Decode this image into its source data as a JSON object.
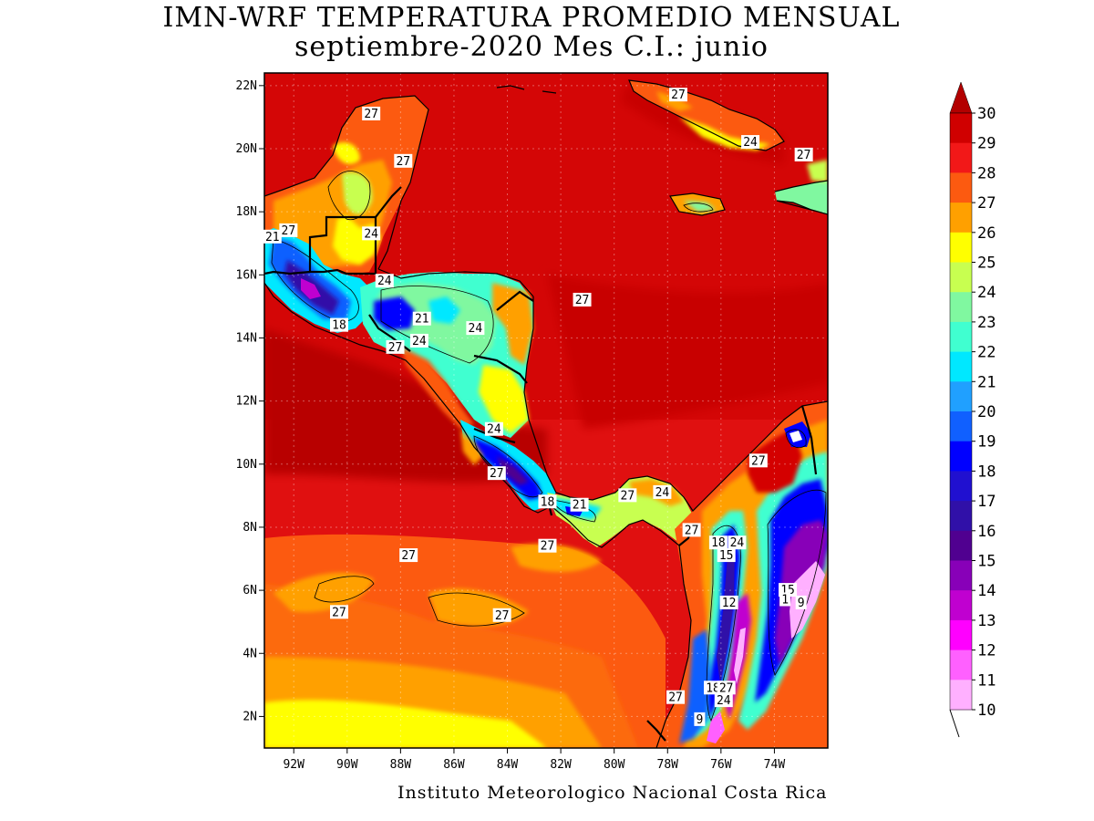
{
  "header": {
    "title_line1": "IMN-WRF  TEMPERATURA PROMEDIO MENSUAL",
    "title_line2": "septiembre-2020 Mes C.I.: junio"
  },
  "footer": {
    "credit": "Instituto Meteorologico Nacional Costa Rica"
  },
  "map": {
    "lon_ticks": [
      "92W",
      "90W",
      "88W",
      "86W",
      "84W",
      "82W",
      "80W",
      "78W",
      "76W",
      "74W"
    ],
    "lat_ticks": [
      "22N",
      "20N",
      "18N",
      "16N",
      "14N",
      "12N",
      "10N",
      "8N",
      "6N",
      "4N",
      "2N"
    ],
    "extent": {
      "lon": [
        -93.1,
        -72.0
      ],
      "lat": [
        1.0,
        22.4
      ]
    },
    "grid": true,
    "contour_labels": [
      {
        "text": "27",
        "lon": -89.1,
        "lat": 21.1
      },
      {
        "text": "27",
        "lon": -87.9,
        "lat": 19.6
      },
      {
        "text": "27",
        "lon": -92.2,
        "lat": 17.4
      },
      {
        "text": "21",
        "lon": -92.8,
        "lat": 17.2
      },
      {
        "text": "24",
        "lon": -89.1,
        "lat": 17.3
      },
      {
        "text": "24",
        "lon": -88.6,
        "lat": 15.8
      },
      {
        "text": "18",
        "lon": -90.3,
        "lat": 14.4
      },
      {
        "text": "21",
        "lon": -87.2,
        "lat": 14.6
      },
      {
        "text": "24",
        "lon": -85.2,
        "lat": 14.3
      },
      {
        "text": "27",
        "lon": -88.2,
        "lat": 13.7
      },
      {
        "text": "24",
        "lon": -87.3,
        "lat": 13.9
      },
      {
        "text": "27",
        "lon": -81.2,
        "lat": 15.2
      },
      {
        "text": "27",
        "lon": -77.6,
        "lat": 21.7
      },
      {
        "text": "24",
        "lon": -74.9,
        "lat": 20.2
      },
      {
        "text": "27",
        "lon": -72.9,
        "lat": 19.8
      },
      {
        "text": "24",
        "lon": -84.5,
        "lat": 11.1
      },
      {
        "text": "27",
        "lon": -84.4,
        "lat": 9.7
      },
      {
        "text": "18",
        "lon": -82.5,
        "lat": 8.8
      },
      {
        "text": "21",
        "lon": -81.3,
        "lat": 8.7
      },
      {
        "text": "27",
        "lon": -79.5,
        "lat": 9.0
      },
      {
        "text": "24",
        "lon": -78.2,
        "lat": 9.1
      },
      {
        "text": "27",
        "lon": -74.6,
        "lat": 10.1
      },
      {
        "text": "27",
        "lon": -77.1,
        "lat": 7.9
      },
      {
        "text": "18",
        "lon": -76.1,
        "lat": 7.5
      },
      {
        "text": "24",
        "lon": -75.4,
        "lat": 7.5
      },
      {
        "text": "15",
        "lon": -75.8,
        "lat": 7.1
      },
      {
        "text": "27",
        "lon": -82.5,
        "lat": 7.4
      },
      {
        "text": "27",
        "lon": -87.7,
        "lat": 7.1
      },
      {
        "text": "27",
        "lon": -90.3,
        "lat": 5.3
      },
      {
        "text": "27",
        "lon": -84.2,
        "lat": 5.2
      },
      {
        "text": "12",
        "lon": -75.7,
        "lat": 5.6
      },
      {
        "text": "15",
        "lon": -73.5,
        "lat": 6.0
      },
      {
        "text": "1",
        "lon": -73.6,
        "lat": 5.7
      },
      {
        "text": "9",
        "lon": -73.0,
        "lat": 5.6
      },
      {
        "text": "27",
        "lon": -77.7,
        "lat": 2.6
      },
      {
        "text": "18",
        "lon": -76.3,
        "lat": 2.9
      },
      {
        "text": "27",
        "lon": -75.8,
        "lat": 2.9
      },
      {
        "text": "24",
        "lon": -75.9,
        "lat": 2.5
      },
      {
        "text": "9",
        "lon": -76.8,
        "lat": 1.9
      }
    ]
  },
  "colorbar": {
    "labels": [
      "30",
      "29",
      "28",
      "27",
      "26",
      "25",
      "24",
      "23",
      "22",
      "21",
      "20",
      "19",
      "18",
      "17",
      "16",
      "15",
      "14",
      "13",
      "12",
      "11",
      "10"
    ],
    "colors": [
      "#b30000",
      "#d00000",
      "#f21818",
      "#fc5a10",
      "#ffa000",
      "#ffff00",
      "#c8ff50",
      "#80f8a0",
      "#40ffd0",
      "#00e8ff",
      "#20a0ff",
      "#1060ff",
      "#0000ff",
      "#2010d0",
      "#3010a8",
      "#500090",
      "#8800b8",
      "#c000d0",
      "#ff00ff",
      "#ff60ff",
      "#ffb0ff"
    ]
  }
}
